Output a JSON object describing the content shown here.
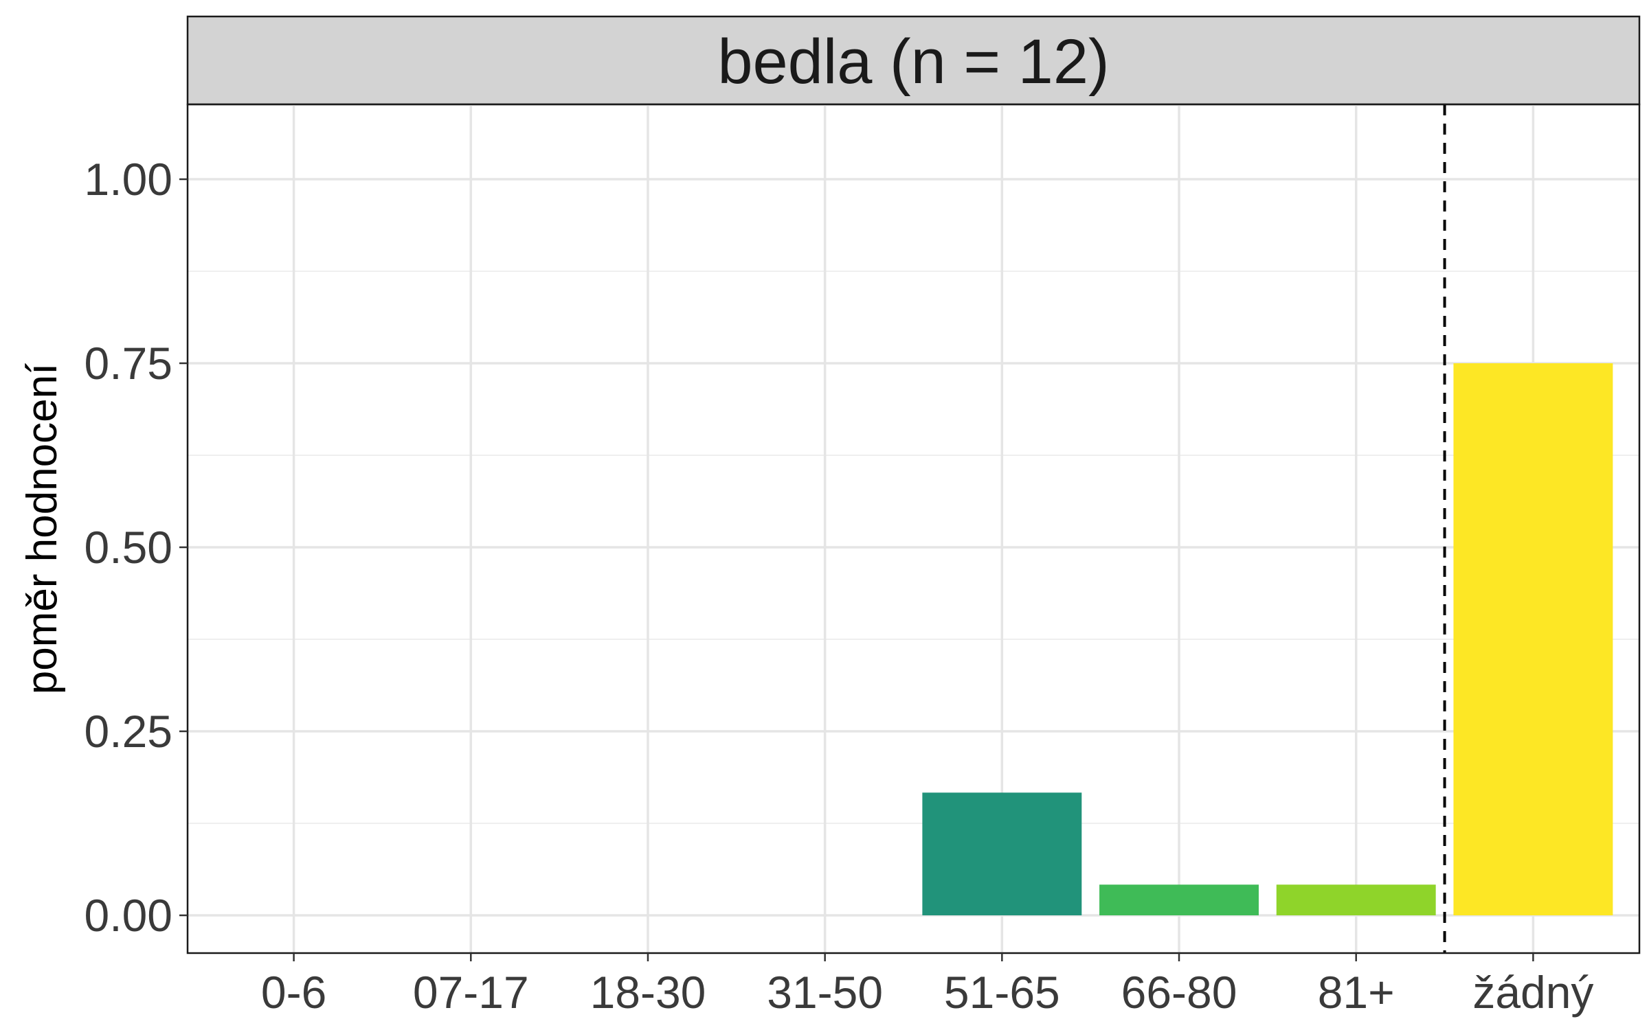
{
  "chart_data": {
    "type": "bar",
    "facet_title": "bedla (n = 12)",
    "categories": [
      "0-6",
      "07-17",
      "18-30",
      "31-50",
      "51-65",
      "66-80",
      "81+",
      "žádný"
    ],
    "values": [
      0,
      0,
      0,
      0,
      0.1667,
      0.0417,
      0.0417,
      0.75
    ],
    "bar_colors": [
      "#440154",
      "#46327e",
      "#365c8d",
      "#277f8e",
      "#21937a",
      "#3fbb57",
      "#8fd42a",
      "#fde725"
    ],
    "xlabel": "",
    "ylabel": "poměr hodnocení",
    "ylim": [
      0,
      1.1
    ],
    "yticks": [
      0,
      0.25,
      0.5,
      0.75,
      1.0
    ],
    "ytick_labels": [
      "0.00",
      "0.25",
      "0.50",
      "0.75",
      "1.00"
    ],
    "reference_line": {
      "style": "dashed",
      "position": "between 81+ and žádný",
      "color": "#000000"
    },
    "grid": true,
    "legend": "none"
  }
}
